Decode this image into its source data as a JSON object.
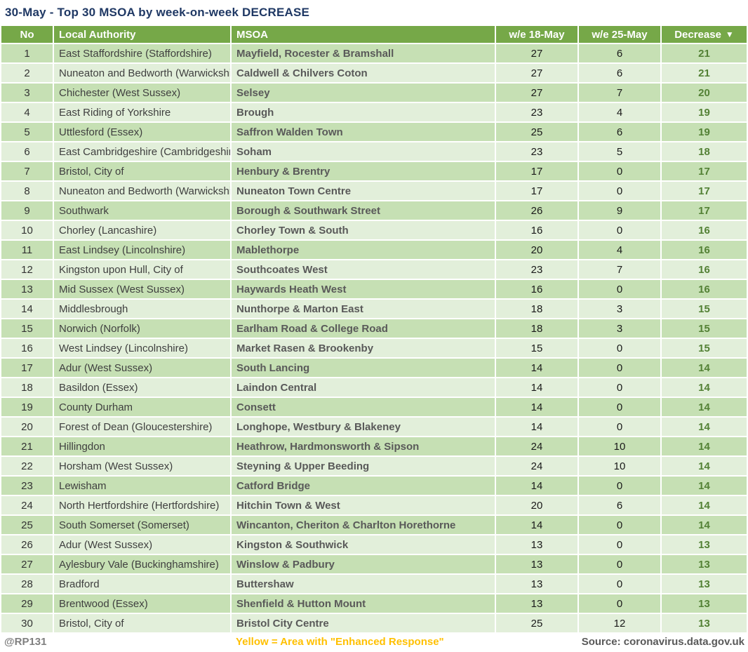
{
  "title": "30-May - Top 30 MSOA by week-on-week DECREASE",
  "chart_data": {
    "type": "table",
    "columns": [
      "No",
      "Local Authority",
      "MSOA",
      "w/e 18-May",
      "w/e 25-May",
      "Decrease"
    ],
    "sort": {
      "column": "Decrease",
      "direction": "descending",
      "icon": "▼"
    },
    "rows": [
      {
        "no": 1,
        "local_authority": "East Staffordshire (Staffordshire)",
        "msoa": "Mayfield, Rocester & Bramshall",
        "we_18_may": 27,
        "we_25_may": 6,
        "decrease": 21
      },
      {
        "no": 2,
        "local_authority": "Nuneaton and Bedworth (Warwickshire)",
        "msoa": "Caldwell & Chilvers Coton",
        "we_18_may": 27,
        "we_25_may": 6,
        "decrease": 21
      },
      {
        "no": 3,
        "local_authority": "Chichester (West Sussex)",
        "msoa": "Selsey",
        "we_18_may": 27,
        "we_25_may": 7,
        "decrease": 20
      },
      {
        "no": 4,
        "local_authority": "East Riding of Yorkshire",
        "msoa": "Brough",
        "we_18_may": 23,
        "we_25_may": 4,
        "decrease": 19
      },
      {
        "no": 5,
        "local_authority": "Uttlesford (Essex)",
        "msoa": "Saffron Walden Town",
        "we_18_may": 25,
        "we_25_may": 6,
        "decrease": 19
      },
      {
        "no": 6,
        "local_authority": "East Cambridgeshire (Cambridgeshire)",
        "msoa": "Soham",
        "we_18_may": 23,
        "we_25_may": 5,
        "decrease": 18
      },
      {
        "no": 7,
        "local_authority": "Bristol, City of",
        "msoa": "Henbury & Brentry",
        "we_18_may": 17,
        "we_25_may": 0,
        "decrease": 17
      },
      {
        "no": 8,
        "local_authority": "Nuneaton and Bedworth (Warwickshire)",
        "msoa": "Nuneaton Town Centre",
        "we_18_may": 17,
        "we_25_may": 0,
        "decrease": 17
      },
      {
        "no": 9,
        "local_authority": "Southwark",
        "msoa": "Borough & Southwark Street",
        "we_18_may": 26,
        "we_25_may": 9,
        "decrease": 17
      },
      {
        "no": 10,
        "local_authority": "Chorley (Lancashire)",
        "msoa": "Chorley Town & South",
        "we_18_may": 16,
        "we_25_may": 0,
        "decrease": 16
      },
      {
        "no": 11,
        "local_authority": "East Lindsey (Lincolnshire)",
        "msoa": "Mablethorpe",
        "we_18_may": 20,
        "we_25_may": 4,
        "decrease": 16
      },
      {
        "no": 12,
        "local_authority": "Kingston upon Hull, City of",
        "msoa": "Southcoates West",
        "we_18_may": 23,
        "we_25_may": 7,
        "decrease": 16
      },
      {
        "no": 13,
        "local_authority": "Mid Sussex (West Sussex)",
        "msoa": "Haywards Heath West",
        "we_18_may": 16,
        "we_25_may": 0,
        "decrease": 16
      },
      {
        "no": 14,
        "local_authority": "Middlesbrough",
        "msoa": "Nunthorpe & Marton East",
        "we_18_may": 18,
        "we_25_may": 3,
        "decrease": 15
      },
      {
        "no": 15,
        "local_authority": "Norwich (Norfolk)",
        "msoa": "Earlham Road & College Road",
        "we_18_may": 18,
        "we_25_may": 3,
        "decrease": 15
      },
      {
        "no": 16,
        "local_authority": "West Lindsey (Lincolnshire)",
        "msoa": "Market Rasen & Brookenby",
        "we_18_may": 15,
        "we_25_may": 0,
        "decrease": 15
      },
      {
        "no": 17,
        "local_authority": "Adur (West Sussex)",
        "msoa": "South Lancing",
        "we_18_may": 14,
        "we_25_may": 0,
        "decrease": 14
      },
      {
        "no": 18,
        "local_authority": "Basildon (Essex)",
        "msoa": "Laindon Central",
        "we_18_may": 14,
        "we_25_may": 0,
        "decrease": 14
      },
      {
        "no": 19,
        "local_authority": "County Durham",
        "msoa": "Consett",
        "we_18_may": 14,
        "we_25_may": 0,
        "decrease": 14
      },
      {
        "no": 20,
        "local_authority": "Forest of Dean (Gloucestershire)",
        "msoa": "Longhope, Westbury & Blakeney",
        "we_18_may": 14,
        "we_25_may": 0,
        "decrease": 14
      },
      {
        "no": 21,
        "local_authority": "Hillingdon",
        "msoa": "Heathrow, Hardmonsworth & Sipson",
        "we_18_may": 24,
        "we_25_may": 10,
        "decrease": 14
      },
      {
        "no": 22,
        "local_authority": "Horsham (West Sussex)",
        "msoa": "Steyning & Upper Beeding",
        "we_18_may": 24,
        "we_25_may": 10,
        "decrease": 14
      },
      {
        "no": 23,
        "local_authority": "Lewisham",
        "msoa": "Catford Bridge",
        "we_18_may": 14,
        "we_25_may": 0,
        "decrease": 14
      },
      {
        "no": 24,
        "local_authority": "North Hertfordshire (Hertfordshire)",
        "msoa": "Hitchin Town & West",
        "we_18_may": 20,
        "we_25_may": 6,
        "decrease": 14
      },
      {
        "no": 25,
        "local_authority": "South Somerset (Somerset)",
        "msoa": "Wincanton, Cheriton & Charlton Horethorne",
        "we_18_may": 14,
        "we_25_may": 0,
        "decrease": 14
      },
      {
        "no": 26,
        "local_authority": "Adur (West Sussex)",
        "msoa": "Kingston & Southwick",
        "we_18_may": 13,
        "we_25_may": 0,
        "decrease": 13
      },
      {
        "no": 27,
        "local_authority": "Aylesbury Vale (Buckinghamshire)",
        "msoa": "Winslow & Padbury",
        "we_18_may": 13,
        "we_25_may": 0,
        "decrease": 13
      },
      {
        "no": 28,
        "local_authority": "Bradford",
        "msoa": "Buttershaw",
        "we_18_may": 13,
        "we_25_may": 0,
        "decrease": 13
      },
      {
        "no": 29,
        "local_authority": "Brentwood (Essex)",
        "msoa": "Shenfield & Hutton Mount",
        "we_18_may": 13,
        "we_25_may": 0,
        "decrease": 13
      },
      {
        "no": 30,
        "local_authority": "Bristol, City of",
        "msoa": "Bristol City Centre",
        "we_18_may": 25,
        "we_25_may": 12,
        "decrease": 13
      }
    ]
  },
  "footer": {
    "handle": "@RP131",
    "legend": "Yellow = Area with \"Enhanced Response\"",
    "source": "Source: coronavirus.data.gov.uk"
  },
  "colors": {
    "title_navy": "#1F3864",
    "header_green": "#76A848",
    "band_dark": "#C6E0B4",
    "band_light": "#E2EFDA",
    "decrease_green": "#538135",
    "legend_yellow": "#FFC000",
    "handle_gray": "#7F7F7F",
    "source_gray": "#595959"
  }
}
